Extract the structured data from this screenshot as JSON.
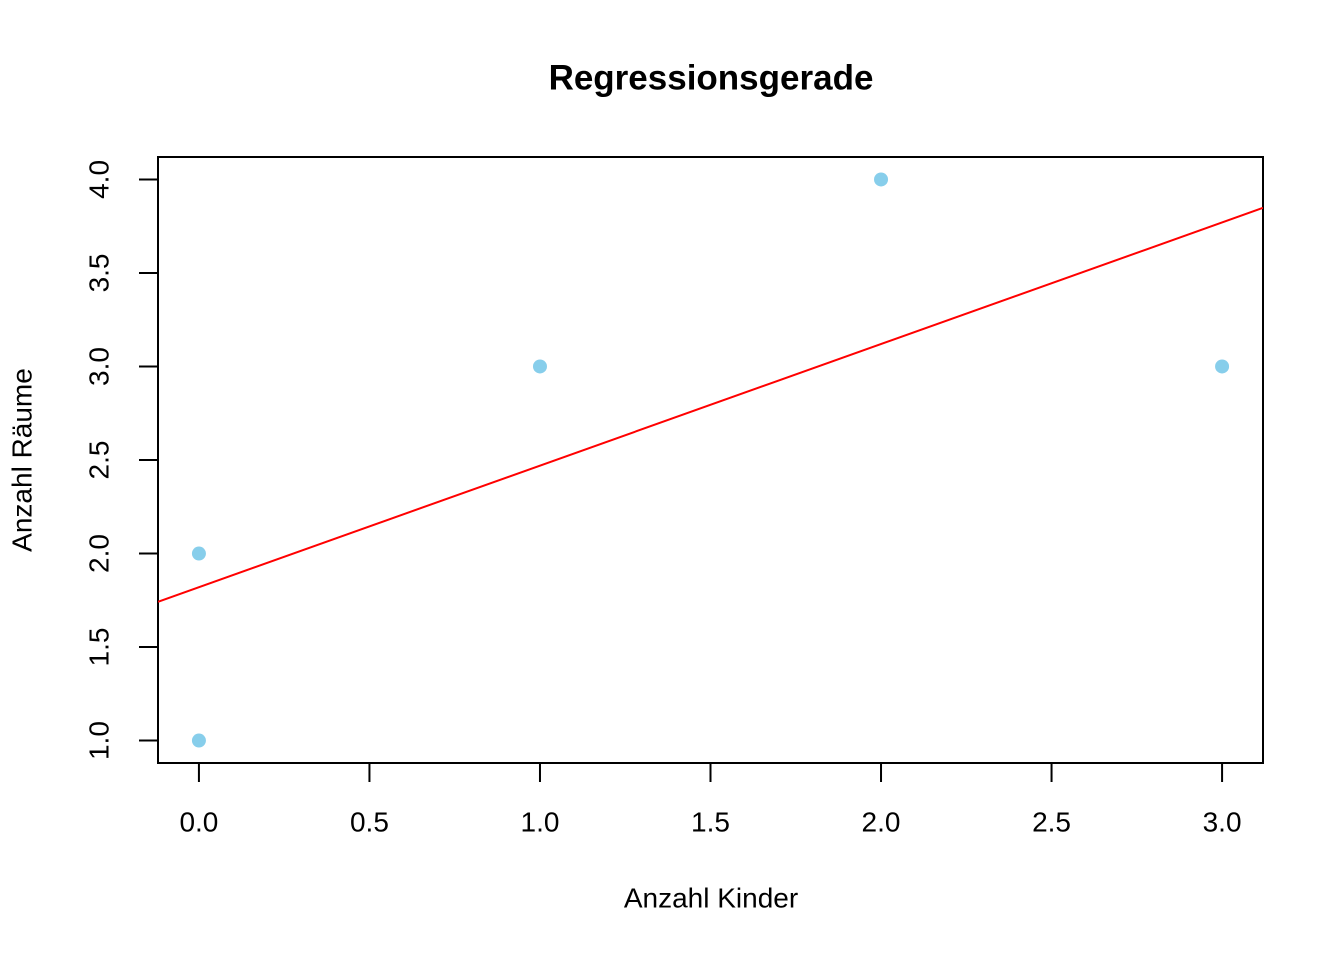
{
  "chart_data": {
    "type": "scatter",
    "title": "Regressionsgerade",
    "x_label": "Anzahl Kinder",
    "y_label": "Anzahl Räume",
    "x": [
      0,
      0,
      1,
      2,
      3
    ],
    "y": [
      1,
      2,
      3,
      4,
      3
    ],
    "color": "#87ceeb",
    "regression": {
      "intercept": 1.82,
      "slope": 0.65,
      "color": "#ff0000"
    },
    "xlim": [
      -0.12,
      3.12
    ],
    "ylim": [
      0.88,
      4.12
    ],
    "xticks": [
      {
        "value": 0,
        "label": "0.0"
      },
      {
        "value": 0.5,
        "label": "0.5"
      },
      {
        "value": 1,
        "label": "1.0"
      },
      {
        "value": 1.5,
        "label": "1.5"
      },
      {
        "value": 2,
        "label": "2.0"
      },
      {
        "value": 2.5,
        "label": "2.5"
      },
      {
        "value": 3,
        "label": "3.0"
      }
    ],
    "yticks": [
      {
        "value": 1,
        "label": "1.0"
      },
      {
        "value": 1.5,
        "label": "1.5"
      },
      {
        "value": 2,
        "label": "2.0"
      },
      {
        "value": 2.5,
        "label": "2.5"
      },
      {
        "value": 3,
        "label": "3.0"
      },
      {
        "value": 3.5,
        "label": "3.5"
      },
      {
        "value": 4,
        "label": "4.0"
      }
    ]
  }
}
